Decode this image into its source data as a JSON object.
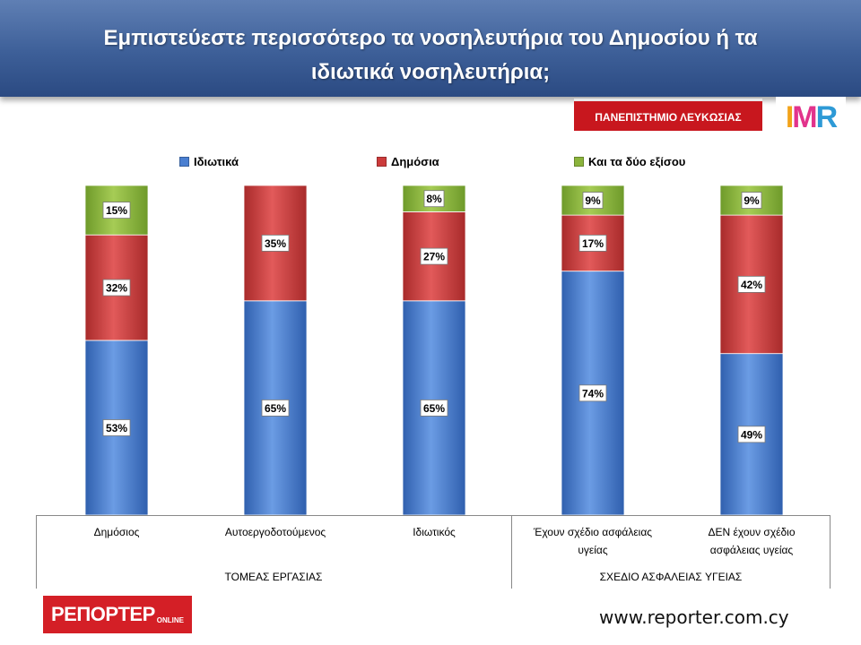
{
  "header": {
    "title_line1": "Εμπιστεύεστε περισσότερο τα νοσηλευτήρια του Δημοσίου ή τα",
    "title_line2": "ιδιωτικά νοσηλευτήρια;"
  },
  "badges": {
    "university": "ΠΑΝΕΠΙΣΤΗΜΙΟ ΛΕΥΚΩΣΙΑΣ",
    "imr": "IMR"
  },
  "footer": {
    "reporter_main": "ΡΕΠΟΡΤΕΡ",
    "reporter_sub": "ONLINE",
    "url": "www.reporter.com.cy"
  },
  "chart_data": {
    "type": "bar",
    "stacked": true,
    "legend_position": "top",
    "categories": [
      "Δημόσιος",
      "Αυτοεργοδοτούμενος",
      "Ιδιωτικός",
      "Έχουν σχέδιο ασφάλειας υγείας",
      "ΔΕΝ έχουν σχέδιο ασφάλειας υγείας"
    ],
    "category_lines": [
      [
        "Δημόσιος"
      ],
      [
        "Αυτοεργοδοτούμενος"
      ],
      [
        "Ιδιωτικός"
      ],
      [
        "Έχουν σχέδιο ασφάλειας",
        "υγείας"
      ],
      [
        "ΔΕΝ έχουν σχέδιο",
        "ασφάλειας υγείας"
      ]
    ],
    "groups": [
      {
        "name": "ΤΟΜΕΑΣ ΕΡΓΑΣΙΑΣ",
        "categories": [
          0,
          1,
          2
        ]
      },
      {
        "name": "ΣΧΕΔΙΟ ΑΣΦΑΛΕΙΑΣ ΥΓΕΙΑΣ",
        "categories": [
          3,
          4
        ]
      }
    ],
    "series": [
      {
        "name": "Ιδιωτικά",
        "color": "#4a7fd1",
        "values": [
          53,
          65,
          65,
          74,
          49
        ]
      },
      {
        "name": "Δημόσια",
        "color": "#cc3b3b",
        "values": [
          32,
          35,
          27,
          17,
          42
        ]
      },
      {
        "name": "Και τα δύο εξίσου",
        "color": "#8bb43c",
        "values": [
          15,
          0,
          8,
          9,
          9
        ]
      }
    ],
    "value_suffix": "%",
    "ylim": [
      0,
      100
    ],
    "grid": false
  }
}
